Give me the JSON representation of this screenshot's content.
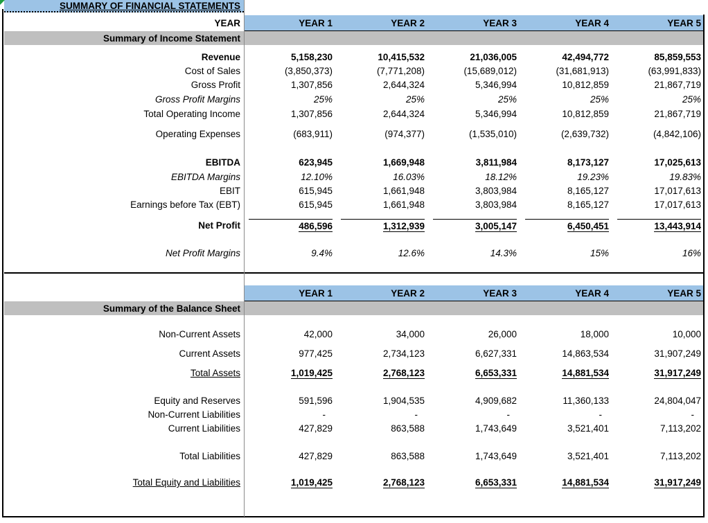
{
  "title": "SUMMARY OF FINANCIAL STATEMENTS",
  "year_row_label": "YEAR",
  "columns": [
    "YEAR 1",
    "YEAR 2",
    "YEAR 3",
    "YEAR 4",
    "YEAR 5"
  ],
  "colors": {
    "header_blue": "#9CC3E6",
    "section_gray": "#BFBFBF"
  },
  "income_statement": {
    "section_title": "Summary of Income Statement",
    "rows": [
      {
        "type": "spacer",
        "h": 7
      },
      {
        "label": "Revenue",
        "style": "bold",
        "h": 20,
        "values": [
          "5,158,230",
          "10,415,532",
          "21,036,005",
          "42,494,772",
          "85,859,553"
        ]
      },
      {
        "label": "Cost of Sales",
        "style": "normal",
        "h": 20,
        "values": [
          "(3,850,373)",
          "(7,771,208)",
          "(15,689,012)",
          "(31,681,913)",
          "(63,991,833)"
        ]
      },
      {
        "label": "Gross Profit",
        "style": "normal",
        "h": 21,
        "values": [
          "1,307,856",
          "2,644,324",
          "5,346,994",
          "10,812,859",
          "21,867,719"
        ]
      },
      {
        "label": "Gross Profit Margins",
        "style": "italic",
        "h": 21,
        "values": [
          "25%",
          "25%",
          "25%",
          "25%",
          "25%"
        ]
      },
      {
        "label": "Total Operating Income",
        "style": "normal",
        "h": 21,
        "values": [
          "1,307,856",
          "2,644,324",
          "5,346,994",
          "10,812,859",
          "21,867,719"
        ]
      },
      {
        "type": "spacer",
        "h": 8
      },
      {
        "label": "Operating Expenses",
        "style": "normal",
        "h": 20,
        "values": [
          "(683,911)",
          "(974,377)",
          "(1,535,010)",
          "(2,639,732)",
          "(4,842,106)"
        ]
      },
      {
        "type": "spacer",
        "h": 21
      },
      {
        "label": "EBITDA",
        "style": "bold",
        "h": 21,
        "values": [
          "623,945",
          "1,669,948",
          "3,811,984",
          "8,173,127",
          "17,025,613"
        ]
      },
      {
        "label": "EBITDA Margins",
        "style": "italic",
        "h": 20,
        "values": [
          "12.10%",
          "16.03%",
          "18.12%",
          "19.23%",
          "19.83%"
        ]
      },
      {
        "label": "EBIT",
        "style": "normal",
        "h": 20,
        "values": [
          "615,945",
          "1,661,948",
          "3,803,984",
          "8,165,127",
          "17,017,613"
        ]
      },
      {
        "label": "Earnings before Tax (EBT)",
        "style": "normal",
        "h": 20,
        "values": [
          "615,945",
          "1,661,948",
          "3,803,984",
          "8,165,127",
          "17,017,613"
        ]
      },
      {
        "type": "spacer",
        "h": 10
      },
      {
        "label": "Net Profit",
        "style": "rule",
        "h": 21,
        "values": [
          "486,596",
          "1,312,939",
          "3,005,147",
          "6,450,451",
          "13,443,914"
        ]
      },
      {
        "type": "spacer",
        "h": 19
      },
      {
        "label": "Net Profit Margins",
        "style": "italic",
        "h": 20,
        "values": [
          "9.4%",
          "12.6%",
          "14.3%",
          "15%",
          "16%"
        ]
      },
      {
        "type": "spacer",
        "h": 18
      }
    ]
  },
  "balance_sheet": {
    "section_title": "Summary of the Balance Sheet",
    "rows": [
      {
        "type": "spacer",
        "h": 17
      },
      {
        "label": "Non-Current Assets",
        "style": "normal",
        "h": 21,
        "values": [
          "42,000",
          "34,000",
          "26,000",
          "18,000",
          "10,000"
        ]
      },
      {
        "type": "spacer",
        "h": 7
      },
      {
        "label": "Current Assets",
        "style": "normal",
        "h": 21,
        "values": [
          "977,425",
          "2,734,123",
          "6,627,331",
          "14,863,534",
          "31,907,249"
        ]
      },
      {
        "type": "spacer",
        "h": 7
      },
      {
        "label": "Total Assets",
        "style": "total",
        "h": 21,
        "values": [
          "1,019,425",
          "2,768,123",
          "6,653,331",
          "14,881,534",
          "31,917,249"
        ]
      },
      {
        "type": "spacer",
        "h": 19
      },
      {
        "label": "Equity and Reserves",
        "style": "normal",
        "h": 20,
        "values": [
          "591,596",
          "1,904,535",
          "4,909,682",
          "11,360,133",
          "24,804,047"
        ]
      },
      {
        "label": "Non-Current Liabilities",
        "style": "normal",
        "h": 20,
        "values": [
          "-",
          "-",
          "-",
          "-",
          "-"
        ]
      },
      {
        "label": "Current Liabilities",
        "style": "normal",
        "h": 20,
        "values": [
          "427,829",
          "863,588",
          "1,743,649",
          "3,521,401",
          "7,113,202"
        ]
      },
      {
        "type": "spacer",
        "h": 20
      },
      {
        "label": "Total Liabilities",
        "style": "normal",
        "h": 20,
        "values": [
          "427,829",
          "863,588",
          "1,743,649",
          "3,521,401",
          "7,113,202"
        ]
      },
      {
        "type": "spacer",
        "h": 18
      },
      {
        "label": "Total Equity and Liabilities",
        "style": "total",
        "h": 21,
        "values": [
          "1,019,425",
          "2,768,123",
          "6,653,331",
          "14,881,534",
          "31,917,249"
        ]
      }
    ]
  }
}
